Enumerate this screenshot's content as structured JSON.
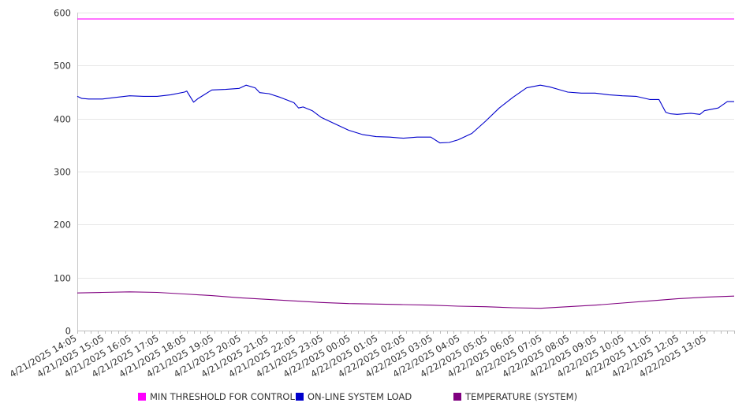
{
  "chart_data": {
    "type": "line",
    "title": "",
    "xlabel": "",
    "ylabel": "",
    "ylim": [
      0,
      600
    ],
    "yticks": [
      0,
      100,
      200,
      300,
      400,
      500,
      600
    ],
    "xlim": [
      "4/21/2025 14:05",
      "4/22/2025 14:05"
    ],
    "x_tick_labels": [
      "4/21/2025 14:05",
      "4/21/2025 15:05",
      "4/21/2025 16:05",
      "4/21/2025 17:05",
      "4/21/2025 18:05",
      "4/21/2025 19:05",
      "4/21/2025 20:05",
      "4/21/2025 21:05",
      "4/21/2025 22:05",
      "4/21/2025 23:05",
      "4/22/2025 00:05",
      "4/22/2025 01:05",
      "4/22/2025 02:05",
      "4/22/2025 03:05",
      "4/22/2025 04:05",
      "4/22/2025 05:05",
      "4/22/2025 06:05",
      "4/22/2025 07:05",
      "4/22/2025 08:05",
      "4/22/2025 09:05",
      "4/22/2025 10:05",
      "4/22/2025 11:05",
      "4/22/2025 12:05",
      "4/22/2025 13:05"
    ],
    "grid": true,
    "legend_position": "bottom",
    "series": [
      {
        "name": "MIN THRESHOLD FOR CONTROL",
        "color": "#ff00ff",
        "x": [
          "4/21/2025 14:05",
          "4/22/2025 14:05"
        ],
        "values": [
          588,
          588
        ]
      },
      {
        "name": "ON-LINE SYSTEM LOAD",
        "color": "#0000cc",
        "x": [
          "4/21/2025 14:05",
          "4/21/2025 14:15",
          "4/21/2025 14:30",
          "4/21/2025 15:00",
          "4/21/2025 15:30",
          "4/21/2025 16:00",
          "4/21/2025 16:30",
          "4/21/2025 17:00",
          "4/21/2025 17:30",
          "4/21/2025 18:00",
          "4/21/2025 18:05",
          "4/21/2025 18:20",
          "4/21/2025 18:30",
          "4/21/2025 19:00",
          "4/21/2025 19:30",
          "4/21/2025 20:00",
          "4/21/2025 20:15",
          "4/21/2025 20:35",
          "4/21/2025 20:45",
          "4/21/2025 21:05",
          "4/21/2025 21:30",
          "4/21/2025 22:00",
          "4/21/2025 22:10",
          "4/21/2025 22:20",
          "4/21/2025 22:40",
          "4/21/2025 23:00",
          "4/21/2025 23:30",
          "4/22/2025 00:00",
          "4/22/2025 00:30",
          "4/22/2025 01:00",
          "4/22/2025 01:30",
          "4/22/2025 02:00",
          "4/22/2025 02:30",
          "4/22/2025 03:00",
          "4/22/2025 03:20",
          "4/22/2025 03:40",
          "4/22/2025 04:00",
          "4/22/2025 04:30",
          "4/22/2025 05:00",
          "4/22/2025 05:30",
          "4/22/2025 06:00",
          "4/22/2025 06:30",
          "4/22/2025 07:00",
          "4/22/2025 07:20",
          "4/22/2025 07:40",
          "4/22/2025 08:00",
          "4/22/2025 08:30",
          "4/22/2025 09:00",
          "4/22/2025 09:30",
          "4/22/2025 10:00",
          "4/22/2025 10:30",
          "4/22/2025 11:00",
          "4/22/2025 11:20",
          "4/22/2025 11:35",
          "4/22/2025 11:45",
          "4/22/2025 12:00",
          "4/22/2025 12:30",
          "4/22/2025 12:50",
          "4/22/2025 13:00",
          "4/22/2025 13:30",
          "4/22/2025 13:50",
          "4/22/2025 14:05"
        ],
        "values": [
          442,
          438,
          437,
          437,
          440,
          443,
          442,
          442,
          445,
          450,
          452,
          431,
          438,
          454,
          455,
          457,
          463,
          458,
          449,
          447,
          440,
          430,
          420,
          422,
          415,
          402,
          390,
          378,
          370,
          366,
          365,
          363,
          365,
          365,
          354,
          355,
          360,
          372,
          395,
          420,
          440,
          458,
          463,
          460,
          455,
          450,
          448,
          448,
          445,
          443,
          442,
          436,
          436,
          412,
          409,
          408,
          410,
          408,
          415,
          420,
          432,
          432
        ]
      },
      {
        "name": "TEMPERATURE (SYSTEM)",
        "color": "#800080",
        "x": [
          "4/21/2025 14:05",
          "4/21/2025 15:00",
          "4/21/2025 16:00",
          "4/21/2025 17:00",
          "4/21/2025 18:00",
          "4/21/2025 19:00",
          "4/21/2025 20:00",
          "4/21/2025 21:00",
          "4/21/2025 22:00",
          "4/21/2025 23:00",
          "4/22/2025 00:00",
          "4/22/2025 01:00",
          "4/22/2025 02:00",
          "4/22/2025 03:00",
          "4/22/2025 04:00",
          "4/22/2025 05:00",
          "4/22/2025 06:00",
          "4/22/2025 07:00",
          "4/22/2025 08:00",
          "4/22/2025 09:00",
          "4/22/2025 10:00",
          "4/22/2025 11:00",
          "4/22/2025 12:00",
          "4/22/2025 13:00",
          "4/22/2025 14:05"
        ],
        "values": [
          71,
          72,
          73,
          72,
          69,
          66,
          62,
          59,
          56,
          53,
          51,
          50,
          49,
          48,
          46,
          45,
          43,
          42,
          45,
          48,
          52,
          56,
          60,
          63,
          65
        ]
      }
    ]
  }
}
